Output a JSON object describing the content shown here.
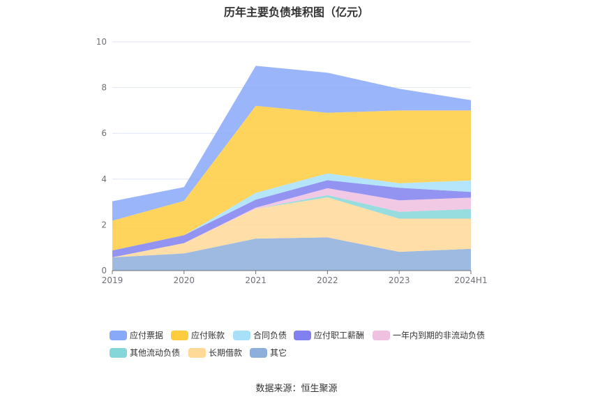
{
  "footer": {
    "source": "数据来源：恒生聚源"
  },
  "chart_data": {
    "type": "area",
    "stacked": true,
    "title": "历年主要负债堆积图（亿元）",
    "xlabel": "",
    "ylabel": "",
    "categories": [
      "2019",
      "2020",
      "2021",
      "2022",
      "2023",
      "2024H1"
    ],
    "yticks": [
      "0",
      "2",
      "4",
      "6",
      "8",
      "10"
    ],
    "ylim": [
      0,
      10
    ],
    "legend_position": "bottom",
    "grid": true,
    "series": [
      {
        "name": "其它",
        "color": "#8eaedc",
        "values": [
          0.58,
          0.75,
          1.4,
          1.45,
          0.82,
          0.95
        ]
      },
      {
        "name": "长期借款",
        "color": "#ffd998",
        "values": [
          0.0,
          0.45,
          1.3,
          1.75,
          1.45,
          1.32
        ]
      },
      {
        "name": "其他流动负债",
        "color": "#85d6d8",
        "values": [
          0.0,
          0.0,
          0.0,
          0.1,
          0.3,
          0.42
        ]
      },
      {
        "name": "一年内到期的非流动负债",
        "color": "#f0c0e0",
        "values": [
          0.0,
          0.0,
          0.05,
          0.3,
          0.5,
          0.5
        ]
      },
      {
        "name": "应付职工薪酬",
        "color": "#8080f0",
        "values": [
          0.3,
          0.35,
          0.35,
          0.35,
          0.55,
          0.25
        ]
      },
      {
        "name": "合同负债",
        "color": "#a8e0fa",
        "values": [
          0.0,
          0.0,
          0.3,
          0.3,
          0.2,
          0.5
        ]
      },
      {
        "name": "应付账款",
        "color": "#ffcc40",
        "values": [
          1.3,
          1.5,
          3.8,
          2.65,
          3.18,
          3.06
        ]
      },
      {
        "name": "应付票据",
        "color": "#88a8f8",
        "values": [
          0.85,
          0.6,
          1.75,
          1.75,
          0.95,
          0.45
        ]
      }
    ],
    "legend_order": [
      "应付票据",
      "应付账款",
      "合同负债",
      "应付职工薪酬",
      "一年内到期的非流动负债",
      "其他流动负债",
      "长期借款",
      "其它"
    ]
  }
}
